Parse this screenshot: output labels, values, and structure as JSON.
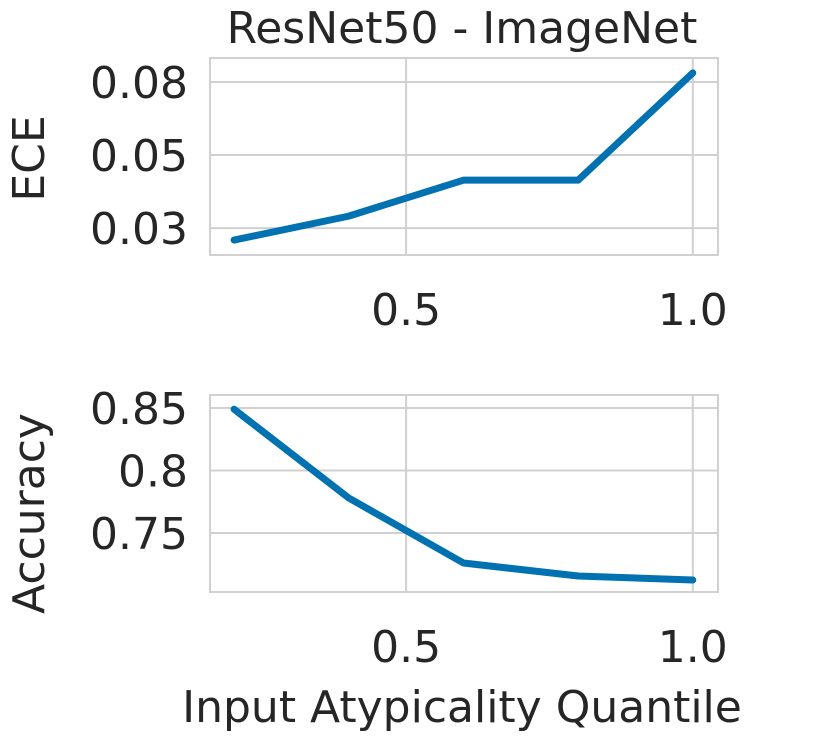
{
  "chart_data": [
    {
      "type": "line",
      "title": "ResNet50 - ImageNet",
      "y_label": "ECE",
      "x": [
        0.2,
        0.4,
        0.6,
        0.8,
        1.0
      ],
      "series": [
        {
          "color": "#0072b2",
          "values": [
            0.0209,
            0.0291,
            0.0414,
            0.0414,
            0.0781
          ]
        }
      ],
      "xlim": [
        0.158,
        1.044
      ],
      "xticks": [
        0.5,
        {
          "value": 1.0,
          "label": "1.0"
        }
      ],
      "ylim": [
        0.0158,
        0.0832
      ],
      "yticks": [
        {
          "value": 0.025,
          "label": "0.03"
        },
        {
          "value": 0.05,
          "label": "0.05"
        },
        {
          "value": 0.075,
          "label": "0.08"
        }
      ],
      "grid": true
    },
    {
      "type": "line",
      "y_label": "Accuracy",
      "x_label": "Input Atypicality Quantile",
      "x": [
        0.2,
        0.4,
        0.6,
        0.8,
        1.0
      ],
      "series": [
        {
          "color": "#0072b2",
          "values": [
            0.849,
            0.778,
            0.726,
            0.7156,
            0.7124
          ]
        }
      ],
      "xlim": [
        0.158,
        1.044
      ],
      "xticks": [
        0.5,
        {
          "value": 1.0,
          "label": "1.0"
        }
      ],
      "ylim": [
        0.7028,
        0.8604
      ],
      "yticks": [
        0.75,
        0.8,
        0.85
      ],
      "grid": true
    }
  ]
}
